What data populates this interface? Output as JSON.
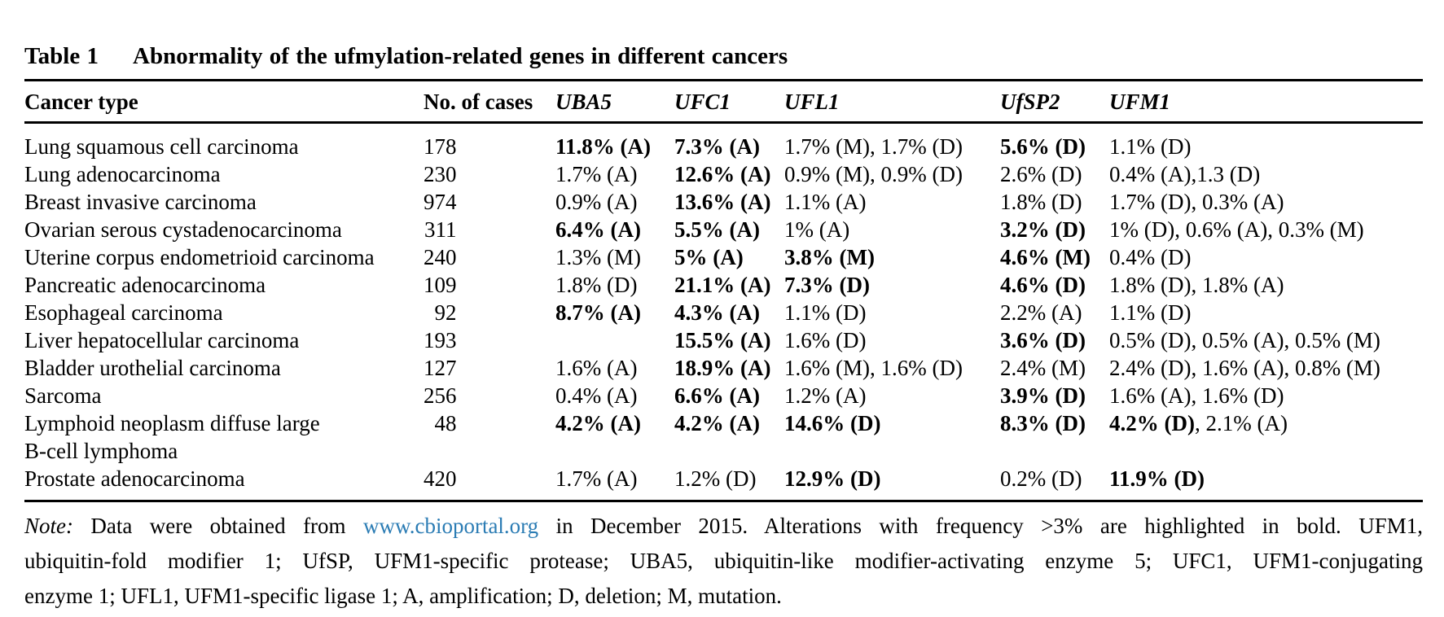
{
  "title": {
    "label": "Table 1",
    "text": "Abnormality of the ufmylation-related genes in different cancers"
  },
  "colors": {
    "background": "#ffffff",
    "text": "#000000",
    "link": "#2b7cb4",
    "rule": "#000000"
  },
  "table": {
    "columns": [
      "Cancer type",
      "No. of cases",
      "UBA5",
      "UFC1",
      "UFL1",
      "UfSP2",
      "UFM1"
    ],
    "bold_rule_threshold": "> 3%",
    "rows": [
      {
        "name_lines": [
          "Lung squamous cell carcinoma"
        ],
        "cases": "178",
        "genes": [
          [
            {
              "t": "11.8% (A)",
              "b": true
            }
          ],
          [
            {
              "t": "7.3% (A)",
              "b": true
            }
          ],
          [
            {
              "t": "1.7% (M), 1.7% (D)",
              "b": false
            }
          ],
          [
            {
              "t": "5.6% (D)",
              "b": true
            }
          ],
          [
            {
              "t": "1.1% (D)",
              "b": false
            }
          ]
        ]
      },
      {
        "name_lines": [
          "Lung adenocarcinoma"
        ],
        "cases": "230",
        "genes": [
          [
            {
              "t": "1.7% (A)",
              "b": false
            }
          ],
          [
            {
              "t": "12.6% (A)",
              "b": true
            }
          ],
          [
            {
              "t": "0.9% (M), 0.9% (D)",
              "b": false
            }
          ],
          [
            {
              "t": "2.6% (D)",
              "b": false
            }
          ],
          [
            {
              "t": "0.4% (A),1.3 (D)",
              "b": false
            }
          ]
        ]
      },
      {
        "name_lines": [
          "Breast invasive carcinoma"
        ],
        "cases": "974",
        "genes": [
          [
            {
              "t": "0.9% (A)",
              "b": false
            }
          ],
          [
            {
              "t": "13.6% (A)",
              "b": true
            }
          ],
          [
            {
              "t": "1.1% (A)",
              "b": false
            }
          ],
          [
            {
              "t": "1.8% (D)",
              "b": false
            }
          ],
          [
            {
              "t": "1.7% (D), 0.3% (A)",
              "b": false
            }
          ]
        ]
      },
      {
        "name_lines": [
          "Ovarian serous cystadenocarcinoma"
        ],
        "cases": "311",
        "genes": [
          [
            {
              "t": "6.4% (A)",
              "b": true
            }
          ],
          [
            {
              "t": "5.5% (A)",
              "b": true
            }
          ],
          [
            {
              "t": "1% (A)",
              "b": false
            }
          ],
          [
            {
              "t": "3.2% (D)",
              "b": true
            }
          ],
          [
            {
              "t": "1% (D), 0.6% (A), 0.3% (M)",
              "b": false
            }
          ]
        ]
      },
      {
        "name_lines": [
          "Uterine corpus endometrioid carcinoma"
        ],
        "cases": "240",
        "genes": [
          [
            {
              "t": "1.3% (M)",
              "b": false
            }
          ],
          [
            {
              "t": "5% (A)",
              "b": true
            }
          ],
          [
            {
              "t": "3.8% (M)",
              "b": true
            }
          ],
          [
            {
              "t": "4.6% (M)",
              "b": true
            }
          ],
          [
            {
              "t": "0.4% (D)",
              "b": false
            }
          ]
        ]
      },
      {
        "name_lines": [
          "Pancreatic adenocarcinoma"
        ],
        "cases": "109",
        "genes": [
          [
            {
              "t": "1.8% (D)",
              "b": false
            }
          ],
          [
            {
              "t": "21.1% (A)",
              "b": true
            }
          ],
          [
            {
              "t": "7.3% (D)",
              "b": true
            }
          ],
          [
            {
              "t": "4.6% (D)",
              "b": true
            }
          ],
          [
            {
              "t": "1.8% (D), 1.8% (A)",
              "b": false
            }
          ]
        ]
      },
      {
        "name_lines": [
          "Esophageal carcinoma"
        ],
        "cases": "92",
        "genes": [
          [
            {
              "t": "8.7% (A)",
              "b": true
            }
          ],
          [
            {
              "t": "4.3% (A)",
              "b": true
            }
          ],
          [
            {
              "t": "1.1% (D)",
              "b": false
            }
          ],
          [
            {
              "t": "2.2% (A)",
              "b": false
            }
          ],
          [
            {
              "t": "1.1% (D)",
              "b": false
            }
          ]
        ]
      },
      {
        "name_lines": [
          "Liver hepatocellular carcinoma"
        ],
        "cases": "193",
        "genes": [
          [],
          [
            {
              "t": "15.5% (A)",
              "b": true
            }
          ],
          [
            {
              "t": "1.6% (D)",
              "b": false
            }
          ],
          [
            {
              "t": "3.6% (D)",
              "b": true
            }
          ],
          [
            {
              "t": "0.5% (D), 0.5% (A), 0.5% (M)",
              "b": false
            }
          ]
        ]
      },
      {
        "name_lines": [
          "Bladder urothelial carcinoma"
        ],
        "cases": "127",
        "genes": [
          [
            {
              "t": "1.6% (A)",
              "b": false
            }
          ],
          [
            {
              "t": "18.9% (A)",
              "b": true
            }
          ],
          [
            {
              "t": "1.6% (M), 1.6% (D)",
              "b": false
            }
          ],
          [
            {
              "t": "2.4% (M)",
              "b": false
            }
          ],
          [
            {
              "t": "2.4% (D), 1.6% (A), 0.8% (M)",
              "b": false
            }
          ]
        ]
      },
      {
        "name_lines": [
          "Sarcoma"
        ],
        "cases": "256",
        "genes": [
          [
            {
              "t": "0.4% (A)",
              "b": false
            }
          ],
          [
            {
              "t": "6.6% (A)",
              "b": true
            }
          ],
          [
            {
              "t": "1.2% (A)",
              "b": false
            }
          ],
          [
            {
              "t": "3.9% (D)",
              "b": true
            }
          ],
          [
            {
              "t": "1.6% (A), 1.6% (D)",
              "b": false
            }
          ]
        ]
      },
      {
        "name_lines": [
          "Lymphoid neoplasm diffuse large",
          "B-cell lymphoma"
        ],
        "cases": "48",
        "genes": [
          [
            {
              "t": "4.2% (A)",
              "b": true
            }
          ],
          [
            {
              "t": "4.2% (A)",
              "b": true
            }
          ],
          [
            {
              "t": "14.6% (D)",
              "b": true
            }
          ],
          [
            {
              "t": "8.3% (D)",
              "b": true
            }
          ],
          [
            {
              "t": "4.2% (D)",
              "b": true
            },
            {
              "t": ", 2.1% (A)",
              "b": false
            }
          ]
        ]
      },
      {
        "name_lines": [
          "Prostate adenocarcinoma"
        ],
        "cases": "420",
        "genes": [
          [
            {
              "t": "1.7% (A)",
              "b": false
            }
          ],
          [
            {
              "t": "1.2% (D)",
              "b": false
            }
          ],
          [
            {
              "t": "12.9% (D)",
              "b": true
            }
          ],
          [
            {
              "t": "0.2% (D)",
              "b": false
            }
          ],
          [
            {
              "t": "11.9% (D)",
              "b": true
            }
          ]
        ]
      }
    ]
  },
  "note": {
    "prefix": "Note:",
    "line1_pre": " Data were obtained from ",
    "link": "www.cbioportal.org",
    "line1_post": " in December 2015. Alterations with frequency >3% are highlighted in bold. UFM1,",
    "line2": "ubiquitin-fold modifier 1; UfSP, UFM1-specific protease; UBA5, ubiquitin-like modifier-activating enzyme 5; UFC1, UFM1-conjugating",
    "line3": "enzyme 1; UFL1, UFM1-specific ligase 1; A, amplification; D, deletion; M, mutation."
  }
}
